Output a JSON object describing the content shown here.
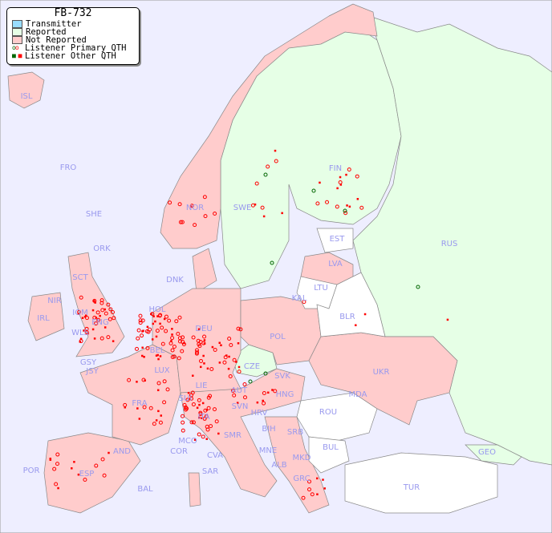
{
  "legend": {
    "title": "FB-732",
    "items": [
      {
        "label": "Transmitter",
        "color": "#99ddff"
      },
      {
        "label": "Reported",
        "color": "#e6ffe6"
      },
      {
        "label": "Not Reported",
        "color": "#ffcccc"
      },
      {
        "label": "Listener Primary QTH",
        "marker": "circle",
        "colors": [
          "#006600",
          "#ff0000"
        ]
      },
      {
        "label": "Listener Other QTH",
        "marker": "square",
        "colors": [
          "#006600",
          "#ff0000"
        ]
      }
    ]
  },
  "colors": {
    "sea": "#eeeeff",
    "reported": "#e6ffe6",
    "not_reported": "#ffcccc",
    "no_data": "#ffffff",
    "label": "#9999ee",
    "marker": "#ff0000",
    "marker_reported": "#006600"
  },
  "countries": [
    "ISL",
    "FRO",
    "SHE",
    "NOR",
    "SWE",
    "FIN",
    "RUS",
    "EST",
    "LVA",
    "LTU",
    "KAL",
    "BLR",
    "DNK",
    "ORK",
    "SCT",
    "NIR",
    "IRL",
    "IOM",
    "WLS",
    "ENG",
    "HOL",
    "BEL",
    "DEU",
    "POL",
    "CZE",
    "SVK",
    "UKR",
    "MDA",
    "LUX",
    "GSY",
    "JSY",
    "FRA",
    "SUI",
    "LIE",
    "AUT",
    "HNG",
    "SVN",
    "HRV",
    "ROU",
    "ITA",
    "MCO",
    "COR",
    "SMR",
    "BIH",
    "SRB",
    "BUL",
    "MNE",
    "ALB",
    "MKD",
    "GRC",
    "TUR",
    "GEO",
    "AND",
    "POR",
    "ESP",
    "BAL",
    "SAR",
    "CVA"
  ]
}
